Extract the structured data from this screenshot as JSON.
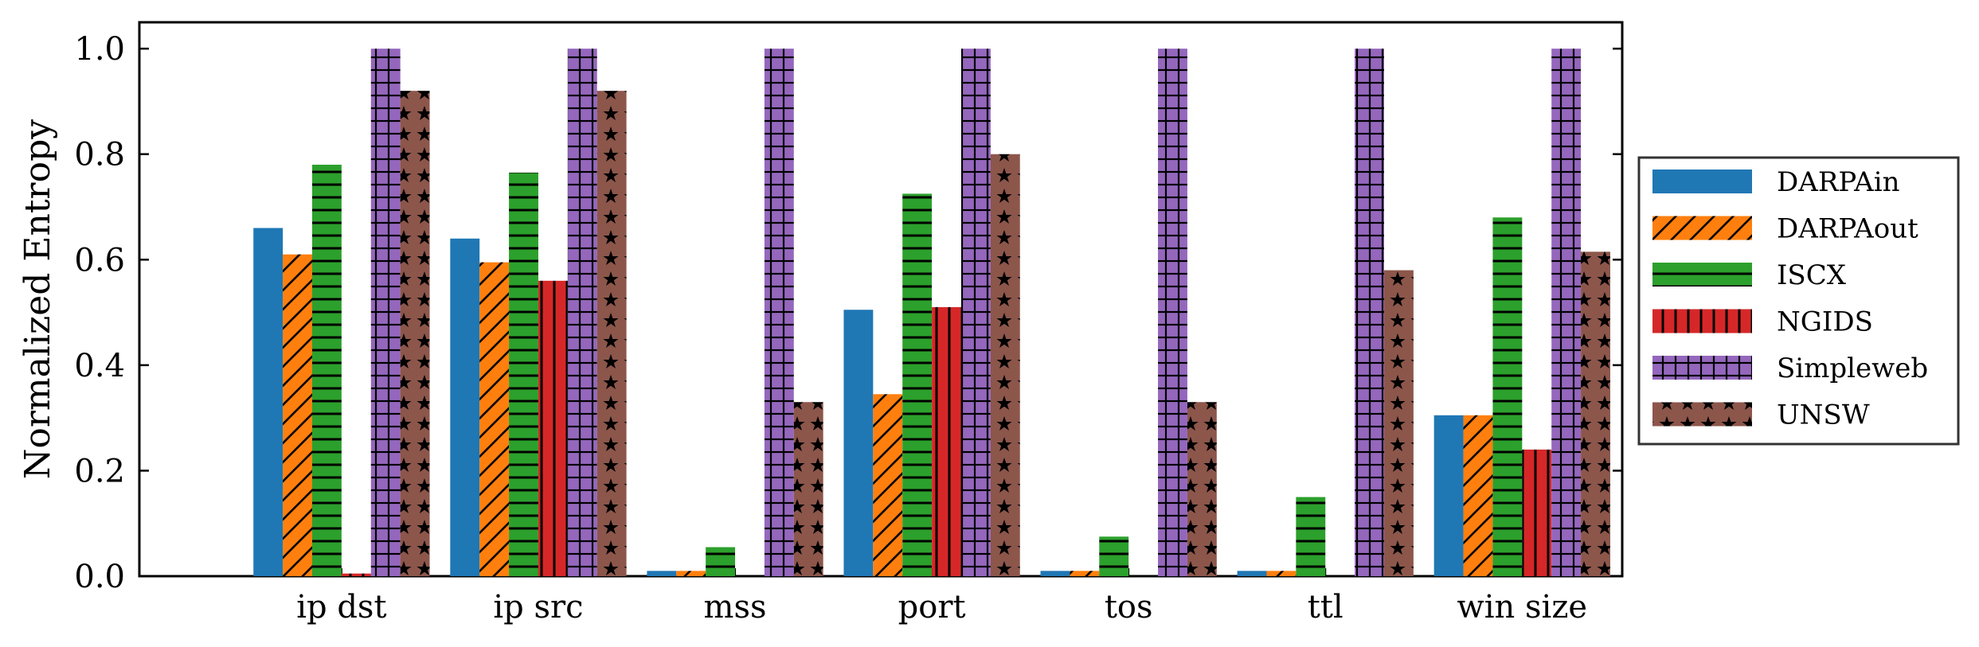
{
  "chart_data": {
    "type": "bar",
    "ylabel": "Normalized Entropy",
    "xlabel": "",
    "ylim": [
      0,
      1.05
    ],
    "yticks": [
      "0.0",
      "0.2",
      "0.4",
      "0.6",
      "0.8",
      "1.0"
    ],
    "categories": [
      "ip dst",
      "ip src",
      "mss",
      "port",
      "tos",
      "ttl",
      "win size"
    ],
    "legend_position": "right",
    "series": [
      {
        "name": "DARPAin",
        "color": "#1f77b4",
        "hatch": "none",
        "values": [
          0.66,
          0.64,
          0.01,
          0.505,
          0.01,
          0.01,
          0.305
        ]
      },
      {
        "name": "DARPAout",
        "color": "#ff7f0e",
        "hatch": "diagonal",
        "values": [
          0.61,
          0.595,
          0.01,
          0.345,
          0.01,
          0.01,
          0.305
        ]
      },
      {
        "name": "ISCX",
        "color": "#2ca02c",
        "hatch": "horizontal",
        "values": [
          0.78,
          0.765,
          0.055,
          0.725,
          0.075,
          0.15,
          0.68
        ]
      },
      {
        "name": "NGIDS",
        "color": "#d62728",
        "hatch": "vertical",
        "values": [
          0.005,
          0.56,
          0.0,
          0.51,
          0.0,
          0.0,
          0.24
        ]
      },
      {
        "name": "Simpleweb",
        "color": "#9467bd",
        "hatch": "grid",
        "values": [
          1.0,
          1.0,
          1.0,
          1.0,
          1.0,
          1.0,
          1.0
        ]
      },
      {
        "name": "UNSW",
        "color": "#8c564b",
        "hatch": "stars",
        "values": [
          0.92,
          0.92,
          0.33,
          0.8,
          0.33,
          0.58,
          0.615
        ]
      }
    ]
  }
}
